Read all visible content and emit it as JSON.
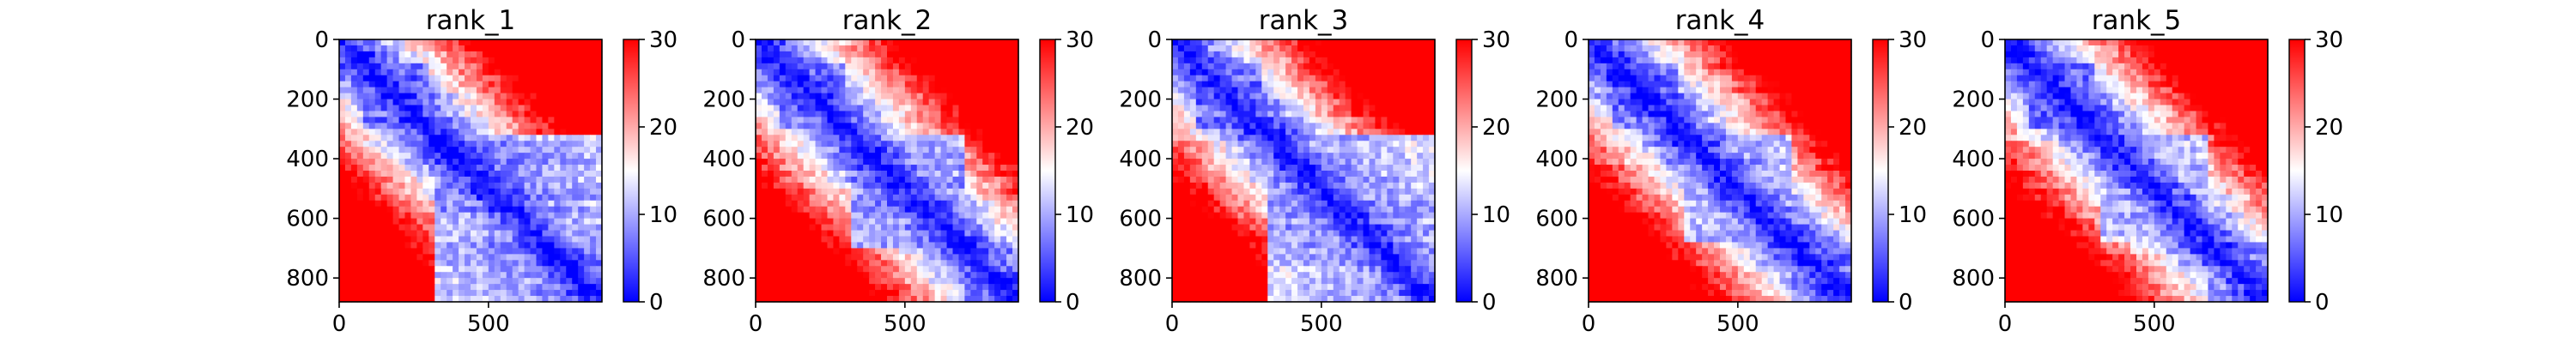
{
  "figure": {
    "background": "#ffffff",
    "colormap": {
      "name": "bwr",
      "colors": [
        "#0000ff",
        "#ffffff",
        "#ff0000"
      ],
      "vmin": 0,
      "vmax": 30
    }
  },
  "chart_data": [
    {
      "type": "heatmap",
      "title": "rank_1",
      "xlabel": "",
      "ylabel": "",
      "xlim": [
        0,
        880
      ],
      "ylim": [
        880,
        0
      ],
      "xticks": [
        0,
        500
      ],
      "yticks": [
        0,
        200,
        400,
        600,
        800
      ],
      "colorbar_ticks": [
        0,
        10,
        20,
        30
      ],
      "domains": [
        {
          "start": 80,
          "end": 300,
          "level": 5
        },
        {
          "start": 330,
          "end": 880,
          "level": 7
        }
      ]
    },
    {
      "type": "heatmap",
      "title": "rank_2",
      "xlabel": "",
      "ylabel": "",
      "xlim": [
        0,
        880
      ],
      "ylim": [
        880,
        0
      ],
      "xticks": [
        0,
        500
      ],
      "yticks": [
        0,
        200,
        400,
        600,
        800
      ],
      "colorbar_ticks": [
        0,
        10,
        20,
        30
      ],
      "domains": [
        {
          "start": 80,
          "end": 300,
          "level": 5
        },
        {
          "start": 330,
          "end": 700,
          "level": 7
        },
        {
          "start": 700,
          "end": 880,
          "level": 6
        }
      ]
    },
    {
      "type": "heatmap",
      "title": "rank_3",
      "xlabel": "",
      "ylabel": "",
      "xlim": [
        0,
        880
      ],
      "ylim": [
        880,
        0
      ],
      "xticks": [
        0,
        500
      ],
      "yticks": [
        0,
        200,
        400,
        600,
        800
      ],
      "colorbar_ticks": [
        0,
        10,
        20,
        30
      ],
      "domains": [
        {
          "start": 80,
          "end": 300,
          "level": 5
        },
        {
          "start": 330,
          "end": 880,
          "level": 7
        }
      ]
    },
    {
      "type": "heatmap",
      "title": "rank_4",
      "xlabel": "",
      "ylabel": "",
      "xlim": [
        0,
        880
      ],
      "ylim": [
        880,
        0
      ],
      "xticks": [
        0,
        500
      ],
      "yticks": [
        0,
        200,
        400,
        600,
        800
      ],
      "colorbar_ticks": [
        0,
        10,
        20,
        30
      ],
      "domains": [
        {
          "start": 80,
          "end": 300,
          "level": 5
        },
        {
          "start": 330,
          "end": 680,
          "level": 8
        },
        {
          "start": 680,
          "end": 880,
          "level": 6
        }
      ]
    },
    {
      "type": "heatmap",
      "title": "rank_5",
      "xlabel": "",
      "ylabel": "",
      "xlim": [
        0,
        880
      ],
      "ylim": [
        880,
        0
      ],
      "xticks": [
        0,
        500
      ],
      "yticks": [
        0,
        200,
        400,
        600,
        800
      ],
      "colorbar_ticks": [
        0,
        10,
        20,
        30
      ],
      "domains": [
        {
          "start": 80,
          "end": 300,
          "level": 5
        },
        {
          "start": 330,
          "end": 680,
          "level": 8
        },
        {
          "start": 680,
          "end": 880,
          "level": 6
        }
      ]
    }
  ]
}
